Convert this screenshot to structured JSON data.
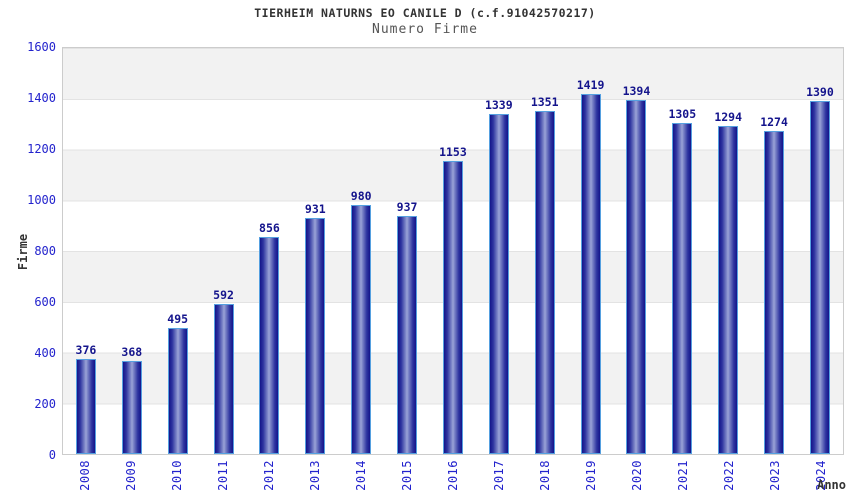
{
  "chart_data": {
    "type": "bar",
    "title": "TIERHEIM NATURNS EO CANILE D (c.f.91042570217)",
    "subtitle": "Numero Firme",
    "xlabel": "Anno",
    "ylabel": "Firme",
    "categories": [
      "2008",
      "2009",
      "2010",
      "2011",
      "2012",
      "2013",
      "2014",
      "2015",
      "2016",
      "2017",
      "2018",
      "2019",
      "2020",
      "2021",
      "2022",
      "2023",
      "2024"
    ],
    "values": [
      376,
      368,
      495,
      592,
      856,
      931,
      980,
      937,
      1153,
      1339,
      1351,
      1419,
      1394,
      1305,
      1294,
      1274,
      1390
    ],
    "ylim": [
      0,
      1600
    ],
    "yticks": [
      0,
      200,
      400,
      600,
      800,
      1000,
      1200,
      1400,
      1600
    ],
    "grid": "alternating-horizontal-bands",
    "legend": "none"
  },
  "colors": {
    "title": "#333333",
    "subtitle": "#555555",
    "axis_title": "#333333",
    "tick_label": "#2323cd",
    "value_label": "#14148c",
    "band_gray": "#f2f2f2",
    "band_white": "#ffffff",
    "plot_border": "#cccccc",
    "bar_dark": "#14148a",
    "bar_light": "#9ba3d8",
    "bar_border": "#55a0e0"
  }
}
